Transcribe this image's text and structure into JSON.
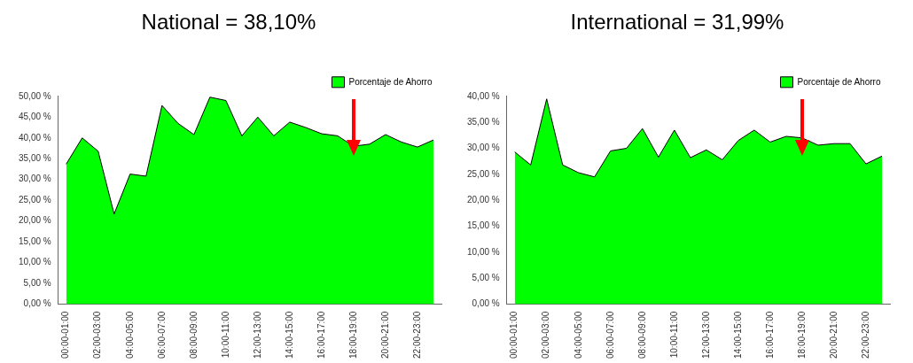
{
  "chart_data": [
    {
      "type": "area",
      "title": "National = 38,10%",
      "categories": [
        "00:00-01:00",
        null,
        "02:00-03:00",
        null,
        "04:00-05:00",
        null,
        "06:00-07:00",
        null,
        "08:00-09:00",
        null,
        "10:00-11:00",
        null,
        "12:00-13:00",
        null,
        "14:00-15:00",
        null,
        "16:00-17:00",
        null,
        "18:00-19:00",
        null,
        "20:00-21:00",
        null,
        "22:00-23:00",
        null
      ],
      "series": [
        {
          "name": "Porcentaje de Ahorro",
          "color": "#00ff00",
          "values": [
            33.7,
            40,
            36.8,
            21.7,
            31.3,
            30.8,
            47.8,
            43.5,
            40.8,
            49.8,
            49,
            40.5,
            45,
            40.5,
            43.8,
            42.5,
            41,
            40.5,
            38,
            38.5,
            40.8,
            39,
            37.8,
            39.5
          ]
        }
      ],
      "ylim": [
        0,
        50
      ],
      "yticks": [
        {
          "value": 0,
          "label": "0,00 %"
        },
        {
          "value": 5,
          "label": "5,00 %"
        },
        {
          "value": 10,
          "label": "10,00 %"
        },
        {
          "value": 15,
          "label": "15,00 %"
        },
        {
          "value": 20,
          "label": "20,00 %"
        },
        {
          "value": 25,
          "label": "25,00 %"
        },
        {
          "value": 30,
          "label": "30,00 %"
        },
        {
          "value": 35,
          "label": "35,00 %"
        },
        {
          "value": 40,
          "label": "40,00 %"
        },
        {
          "value": 45,
          "label": "45,00 %"
        },
        {
          "value": 50,
          "label": "50,00 %"
        }
      ],
      "legend": "top right"
    },
    {
      "type": "area",
      "title": "International = 31,99%",
      "categories": [
        "00:00-01:00",
        null,
        "02:00-03:00",
        null,
        "04:00-05:00",
        null,
        "06:00-07:00",
        null,
        "08:00-09:00",
        null,
        "10:00-11:00",
        null,
        "12:00-13:00",
        null,
        "14:00-15:00",
        null,
        "16:00-17:00",
        null,
        "18:00-19:00",
        null,
        "20:00-21:00",
        null,
        "22:00-23:00",
        null
      ],
      "series": [
        {
          "name": "Porcentaje de Ahorro",
          "color": "#00ff00",
          "values": [
            29.3,
            26.8,
            39.5,
            26.8,
            25.3,
            24.5,
            29.5,
            30,
            33.8,
            28.3,
            33.5,
            28.2,
            29.7,
            27.8,
            31.5,
            33.5,
            31.2,
            32.3,
            32,
            30.6,
            30.9,
            30.9,
            27,
            28.5
          ]
        }
      ],
      "ylim": [
        0,
        40
      ],
      "yticks": [
        {
          "value": 0,
          "label": "0,00 %"
        },
        {
          "value": 5,
          "label": "5,00 %"
        },
        {
          "value": 10,
          "label": "10,00 %"
        },
        {
          "value": 15,
          "label": "15,00 %"
        },
        {
          "value": 20,
          "label": "20,00 %"
        },
        {
          "value": 25,
          "label": "25,00 %"
        },
        {
          "value": 30,
          "label": "30,00 %"
        },
        {
          "value": 35,
          "label": "35,00 %"
        },
        {
          "value": 40,
          "label": "40,00 %"
        }
      ],
      "legend": "top right"
    }
  ]
}
